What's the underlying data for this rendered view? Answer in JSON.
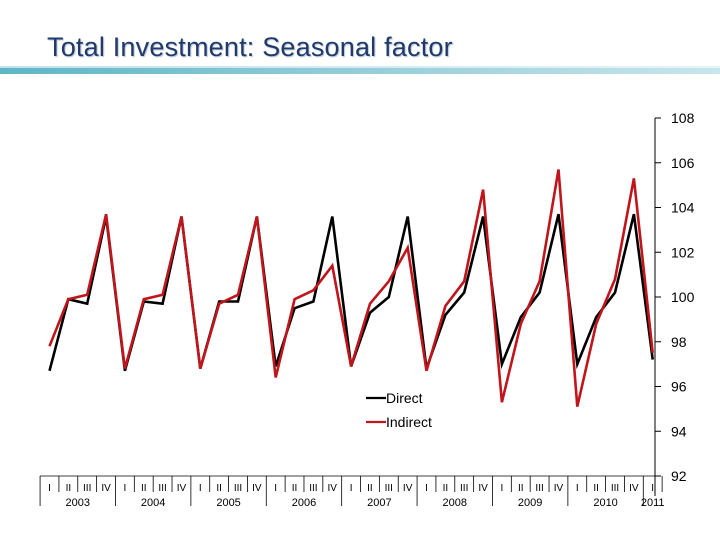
{
  "chart_data": {
    "type": "line",
    "title": "Total Investment: Seasonal factor",
    "xlabel": "",
    "ylabel": "",
    "ylim": [
      92,
      108
    ],
    "yticks": [
      92,
      94,
      96,
      98,
      100,
      102,
      104,
      106,
      108
    ],
    "quarter_labels": [
      "I",
      "II",
      "III",
      "IV",
      "I",
      "II",
      "III",
      "IV",
      "I",
      "II",
      "III",
      "IV",
      "I",
      "II",
      "III",
      "IV",
      "I",
      "II",
      "III",
      "IV",
      "I",
      "II",
      "III",
      "IV",
      "I",
      "II",
      "III",
      "IV",
      "I",
      "II",
      "III",
      "IV",
      "I"
    ],
    "year_labels": [
      "2003",
      "2004",
      "2005",
      "2006",
      "2007",
      "2008",
      "2009",
      "2010",
      "2011"
    ],
    "legend_position": "center",
    "series": [
      {
        "name": "Direct",
        "color": "#000000",
        "values": [
          96.7,
          99.9,
          99.7,
          103.6,
          96.7,
          99.8,
          99.7,
          103.6,
          96.8,
          99.8,
          99.8,
          103.6,
          96.9,
          99.5,
          99.8,
          103.6,
          96.9,
          99.3,
          100.0,
          103.6,
          96.8,
          99.2,
          100.2,
          103.6,
          97.0,
          99.1,
          100.2,
          103.7,
          97.0,
          99.1,
          100.2,
          103.7,
          97.2
        ]
      },
      {
        "name": "Indirect",
        "color": "#c0151b",
        "values": [
          97.8,
          99.9,
          100.1,
          103.7,
          96.8,
          99.9,
          100.1,
          103.6,
          96.8,
          99.7,
          100.1,
          103.6,
          96.4,
          99.9,
          100.3,
          101.4,
          96.9,
          99.7,
          100.7,
          102.2,
          96.7,
          99.6,
          100.7,
          104.8,
          95.3,
          98.8,
          100.7,
          105.7,
          95.1,
          98.8,
          100.8,
          105.3,
          97.5
        ]
      }
    ]
  }
}
